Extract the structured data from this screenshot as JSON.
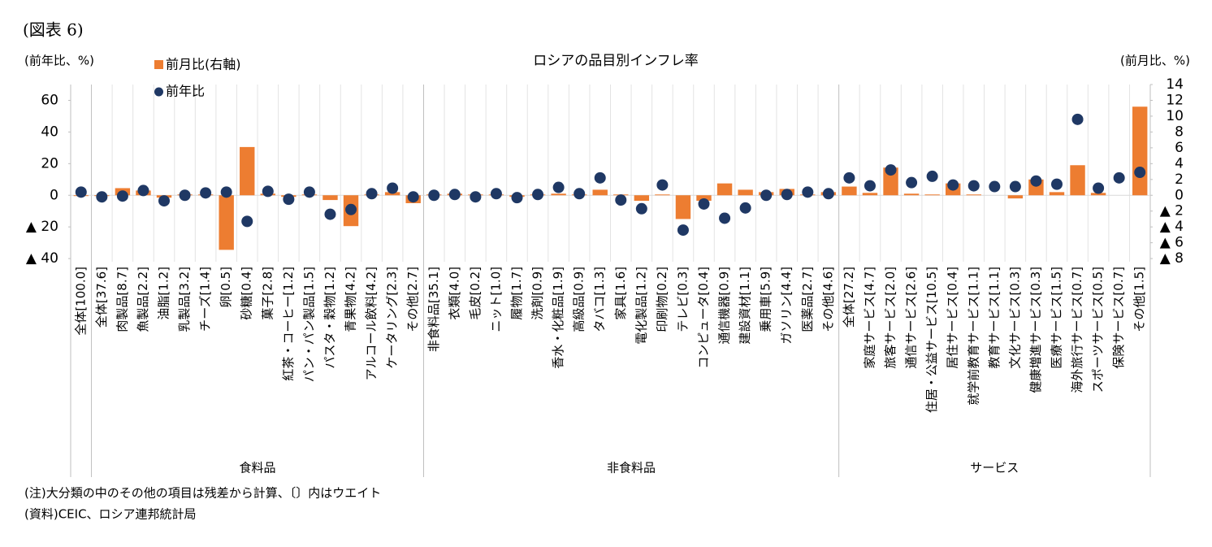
{
  "figure_label": "(図表 6)",
  "chart_data": {
    "type": "combo",
    "title": "ロシアの品目別インフレ率",
    "y_label": "(前年比、%)",
    "y2_label": "(前月比、%)",
    "category_groups": [
      {
        "categories": [
          "全体[100.0]"
        ]
      },
      {
        "name": "食料品",
        "categories": [
          "全体[37.6]",
          "肉製品[8.7]",
          "魚製品[2.2]",
          "油脂[1.2]",
          "乳製品[3.2]",
          "チーズ[1.4]",
          "卵[0.5]",
          "砂糖[0.4]",
          "菓子[2.8]",
          "紅茶・コーヒー[1.2]",
          "パン・パン製品[1.5]",
          "パスタ・穀物[1.2]",
          "青果物[4.2]",
          "アルコール飲料[4.2]",
          "ケータリング[2.3]",
          "その他[2.7]"
        ]
      },
      {
        "name": "非食料品",
        "categories": [
          "非食料品[35.1]",
          "衣類[4.0]",
          "毛皮[0.2]",
          "ニット[1.0]",
          "履物[1.7]",
          "洗剤[0.9]",
          "香水・化粧品[1.9]",
          "高級品[0.9]",
          "タバコ[1.3]",
          "家具[1.6]",
          "電化製品[1.2]",
          "印刷物[0.2]",
          "テレビ[0.3]",
          "コンピュータ[0.4]",
          "通信機器[0.9]",
          "建設資材[1.1]",
          "乗用車[5.9]",
          "ガソリン[4.4]",
          "医薬品[2.7]",
          "その他[4.6]"
        ]
      },
      {
        "name": "サービス",
        "categories": [
          "全体[27.2]",
          "家庭サービス[4.7]",
          "旅客サービス[2.0]",
          "通信サービス[2.6]",
          "住居・公益サービス[10.5]",
          "居住サービス[0.4]",
          "就学前教育サービス[1.1]",
          "教育サービス[1.1]",
          "文化サービス[0.3]",
          "健康増進サービス[0.3]",
          "医療サービス[1.5]",
          "海外旅行サービス[0.7]",
          "スポーツサービス[0.5]",
          "保険サービス[0.7]",
          "その他[1.5]"
        ]
      }
    ],
    "series": [
      {
        "name": "前月比(右軸)",
        "kind": "bar",
        "axis": "y2",
        "color": "#ed7d31",
        "values": [
          -0.1,
          -0.1,
          0.9,
          0.6,
          -0.3,
          0.1,
          0.1,
          -6.9,
          6.1,
          0.2,
          -0.2,
          0.1,
          -0.6,
          -3.9,
          0.1,
          0.4,
          -1.0,
          0.1,
          0.2,
          0.1,
          0.1,
          -0.2,
          0.1,
          0.2,
          0.1,
          0.7,
          0.1,
          -0.7,
          0.1,
          -3.0,
          -0.7,
          1.5,
          0.7,
          0.4,
          0.8,
          0.1,
          0.4,
          1.1,
          0.3,
          3.5,
          0.2,
          0.1,
          1.5,
          0.1,
          0.0,
          -0.4,
          2.0,
          0.4,
          3.8,
          0.3,
          0.0,
          11.2
        ]
      },
      {
        "name": "前年比",
        "kind": "dot",
        "color": "#1f3864",
        "values": [
          2,
          -1,
          -0.5,
          3,
          -3.5,
          0,
          1.5,
          2,
          -16.5,
          2.5,
          -2.5,
          2,
          -12,
          -9,
          1,
          4.5,
          -1,
          0,
          0.5,
          -1,
          1,
          -1.5,
          0.5,
          5,
          1,
          11,
          -3,
          -8.5,
          6.5,
          -22,
          -5.5,
          -14.5,
          -8,
          0,
          0.5,
          2,
          1,
          11,
          6,
          16,
          8,
          12,
          6.5,
          6,
          5.5,
          5.5,
          9,
          7,
          48,
          4.5,
          11,
          14.5
        ]
      }
    ],
    "ylim": [
      -42,
      70
    ],
    "yticks": [
      60,
      40,
      20,
      0,
      {
        "value": -20,
        "label": "▲ 20"
      },
      {
        "value": -40,
        "label": "▲ 40"
      }
    ],
    "y2lim": [
      -8.4,
      14
    ],
    "y2ticks": [
      14,
      12,
      10,
      8,
      6,
      4,
      2,
      0,
      {
        "value": -2,
        "label": "▲ 2"
      },
      {
        "value": -4,
        "label": "▲ 4"
      },
      {
        "value": -6,
        "label": "▲ 6"
      },
      {
        "value": -8,
        "label": "▲ 8"
      }
    ],
    "legend": "top-left",
    "grid": false
  },
  "notes": [
    "(注)大分類の中のその他の項目は残差から計算、〔〕内はウエイト",
    "(資料)CEIC、ロシア連邦統計局"
  ]
}
